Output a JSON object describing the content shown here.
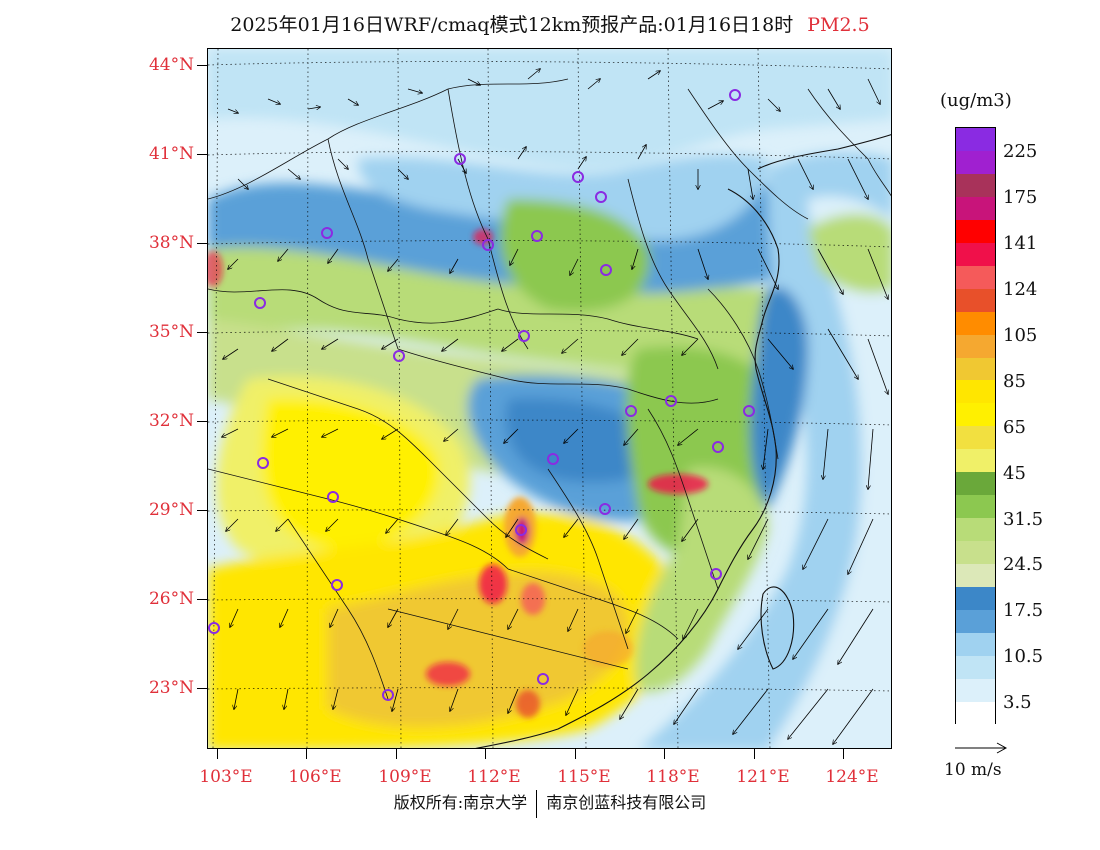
{
  "header": {
    "title": "2025年01月16日WRF/cmaq模式12km预报产品:01月16日18时",
    "species": "PM2.5",
    "species_color": "#e0303a"
  },
  "axes": {
    "lat_labels": [
      "44°N",
      "41°N",
      "38°N",
      "35°N",
      "32°N",
      "29°N",
      "26°N",
      "23°N"
    ],
    "lon_labels": [
      "103°E",
      "106°E",
      "109°E",
      "112°E",
      "115°E",
      "118°E",
      "121°E",
      "124°E"
    ],
    "label_color": "#e0303a"
  },
  "legend": {
    "unit": "(ug/m3)",
    "labels": [
      "225",
      "175",
      "141",
      "124",
      "105",
      "85",
      "65",
      "45",
      "31.5",
      "24.5",
      "17.5",
      "10.5",
      "3.5"
    ],
    "colors": [
      "#8a2be2",
      "#a020d0",
      "#a8325a",
      "#c8147a",
      "#ff0000",
      "#f0104a",
      "#f55a5a",
      "#e8502a",
      "#ff8c00",
      "#f5a830",
      "#f0c832",
      "#ffe600",
      "#fff000",
      "#f2e040",
      "#f0f068",
      "#6aa83a",
      "#8cc850",
      "#b8dc78",
      "#c8e08c",
      "#dce8b8",
      "#3c87c8",
      "#5aa0d8",
      "#a0d2f0",
      "#c0e4f5",
      "#dcf0fa",
      "#ffffff"
    ]
  },
  "wind_reference": {
    "label": "10 m/s"
  },
  "footer": {
    "copyright": "版权所有:南京大学",
    "company": "南京创蓝科技有限公司"
  }
}
